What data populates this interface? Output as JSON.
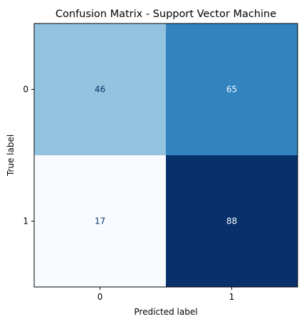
{
  "chart_data": {
    "type": "heatmap",
    "title": "Confusion Matrix - Support Vector Machine",
    "xlabel": "Predicted label",
    "ylabel": "True label",
    "x_categories": [
      "0",
      "1"
    ],
    "y_categories": [
      "0",
      "1"
    ],
    "matrix": [
      [
        46,
        65
      ],
      [
        17,
        88
      ]
    ],
    "colormap": "Blues",
    "value_range": [
      17,
      88
    ],
    "colorbar": false,
    "cell_colors": [
      [
        "#93c3df",
        "#3383be"
      ],
      [
        "#f7fbff",
        "#08306b"
      ]
    ],
    "text_colors": [
      [
        "#08306b",
        "#f7fbff"
      ],
      [
        "#08306b",
        "#f7fbff"
      ]
    ]
  }
}
